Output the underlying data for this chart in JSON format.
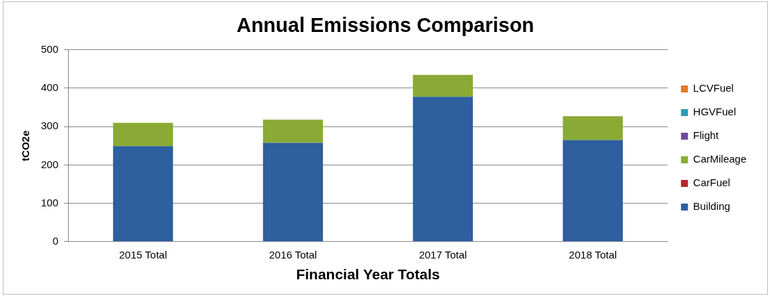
{
  "chart_data": {
    "type": "bar",
    "title": "Annual Emissions Comparison",
    "xlabel": "Financial Year Totals",
    "ylabel": "tCO2e",
    "categories": [
      "2015 Total",
      "2016 Total",
      "2017 Total",
      "2018 Total"
    ],
    "stacked": true,
    "ylim": [
      0,
      500
    ],
    "yticks": [
      0,
      100,
      200,
      300,
      400,
      500
    ],
    "grid": "y",
    "legend": "right",
    "series": [
      {
        "name": "Building",
        "color": "#2e5f9e",
        "values": [
          249,
          258,
          378,
          265
        ]
      },
      {
        "name": "CarFuel",
        "color": "#b3282d",
        "values": [
          0,
          0,
          0,
          0
        ]
      },
      {
        "name": "CarMileage",
        "color": "#8aaa35",
        "values": [
          61,
          60,
          57,
          62
        ]
      },
      {
        "name": "Flight",
        "color": "#6a4c9c",
        "values": [
          0,
          0,
          0,
          0
        ]
      },
      {
        "name": "HGVFuel",
        "color": "#2d9cb5",
        "values": [
          0,
          0,
          0,
          0
        ]
      },
      {
        "name": "LCVFuel",
        "color": "#e07b25",
        "values": [
          0,
          0,
          0,
          0
        ]
      }
    ]
  }
}
